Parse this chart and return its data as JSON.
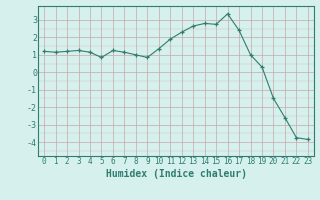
{
  "x": [
    0,
    1,
    2,
    3,
    4,
    5,
    6,
    7,
    8,
    9,
    10,
    11,
    12,
    13,
    14,
    15,
    16,
    17,
    18,
    19,
    20,
    21,
    22,
    23
  ],
  "y": [
    1.2,
    1.15,
    1.2,
    1.25,
    1.15,
    0.85,
    1.25,
    1.15,
    1.0,
    0.85,
    1.35,
    1.9,
    2.3,
    2.65,
    2.8,
    2.75,
    3.35,
    2.4,
    1.0,
    0.3,
    -1.5,
    -2.6,
    -3.75,
    -3.85
  ],
  "line_color": "#2e7d6e",
  "marker_color": "#2e7d6e",
  "bg_color": "#d6f0ed",
  "grid_color_major": "#c8a8a8",
  "grid_color_minor": "#e0d0d0",
  "xlabel": "Humidex (Indice chaleur)",
  "ylim": [
    -4.8,
    3.8
  ],
  "xlim": [
    -0.5,
    23.5
  ],
  "yticks": [
    -4,
    -3,
    -2,
    -1,
    0,
    1,
    2,
    3
  ],
  "tick_color": "#2e7d6e",
  "spine_color": "#2e7d6e",
  "xlabel_color": "#2e7d6e"
}
